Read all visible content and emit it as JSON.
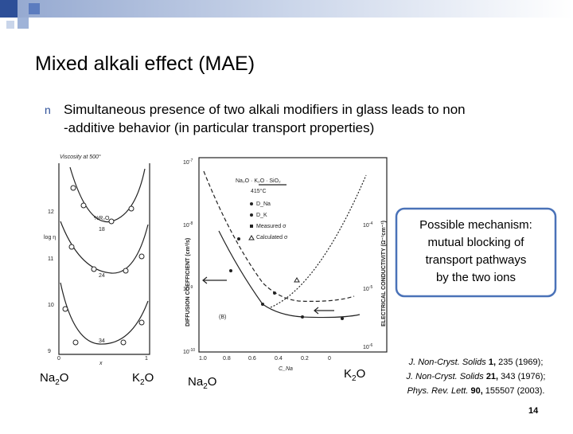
{
  "slide": {
    "title": "Mixed alkali effect (MAE)",
    "bullet": {
      "marker": "n",
      "lines": [
        "Simultaneous presence of two alkali modifiers in glass leads to non",
        "-additive behavior (in particular transport properties)"
      ]
    },
    "left_figure": {
      "title": "Viscosity at 500°",
      "y_label": "log η",
      "curve_label": "%R₂O",
      "yticks": [
        "12",
        "11",
        "10",
        "9"
      ],
      "curve_labels": [
        "18",
        "24",
        "34"
      ],
      "xticks": [
        "0",
        "x",
        "1"
      ]
    },
    "right_figure": {
      "system": "Na₂O · K₂O · SiO₂",
      "temperature": "415°C",
      "legend": [
        "D_Na",
        "D_K",
        "Measured σ",
        "Calculated σ"
      ],
      "y_label": "DIFFUSION COEFFICIENT (cm²/s)",
      "y2_label": "ELECTRICAL CONDUCTIVITY (Ω⁻¹cm⁻¹)",
      "panel": "(B)",
      "yticks": [
        {
          "base": "10",
          "sup": "-7"
        },
        {
          "base": "10",
          "sup": "-8"
        },
        {
          "base": "10",
          "sup": "-9"
        },
        {
          "base": "10",
          "sup": "-10"
        }
      ],
      "y2ticks": [
        {
          "base": "10",
          "sup": "-4"
        },
        {
          "base": "10",
          "sup": "-5"
        },
        {
          "base": "10",
          "sup": "-6"
        }
      ],
      "xticks": [
        "1.0",
        "0.8",
        "0.6",
        "0.4",
        "0.2",
        "0"
      ],
      "x_label": "C_Na"
    },
    "axis_labels": [
      {
        "base": "Na",
        "sub": "2",
        "rest": "O"
      },
      {
        "base": "K",
        "sub": "2",
        "rest": "O"
      },
      {
        "base": "Na",
        "sub": "2",
        "rest": "O"
      },
      {
        "base": "K",
        "sub": "2",
        "rest": "O"
      }
    ],
    "callout": [
      "Possible mechanism:",
      "mutual blocking of",
      "transport pathways",
      "by the two ions"
    ],
    "citations": [
      {
        "journal": "J. Non-Cryst. Solids",
        "volume": "1,",
        "rest": " 235 (1969);"
      },
      {
        "journal": "J. Non-Cryst. Solids",
        "volume": "21,",
        "rest": " 343 (1976);"
      },
      {
        "journal": "Phys. Rev. Lett.",
        "volume": "90,",
        "rest": " 155507 (2003)."
      }
    ],
    "page_number": "14"
  }
}
